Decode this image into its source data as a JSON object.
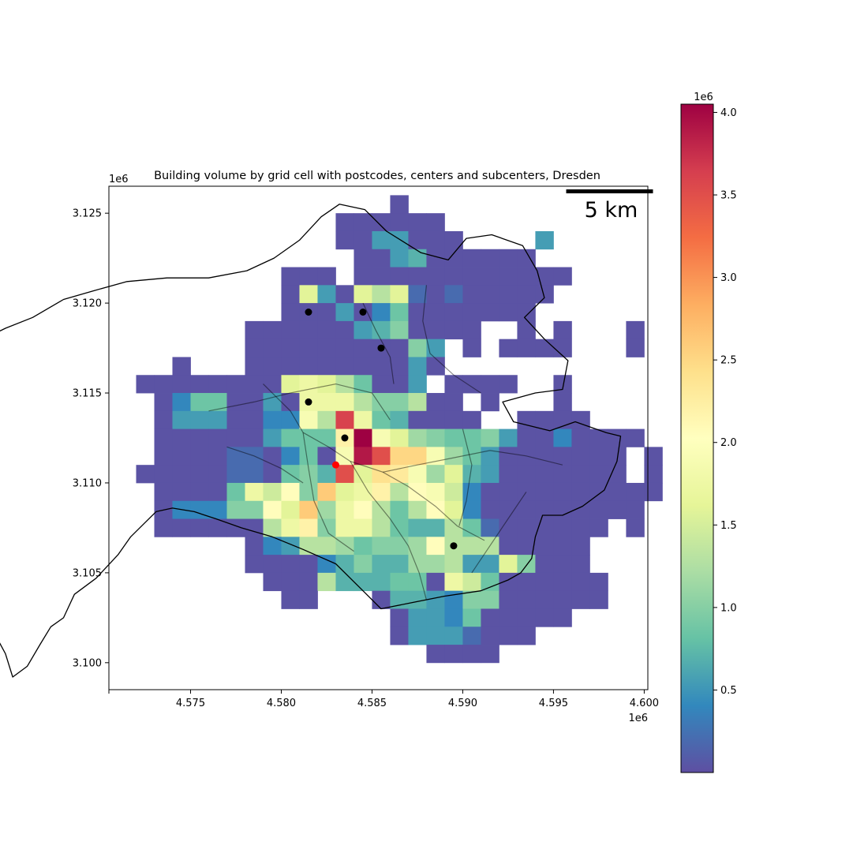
{
  "chart_data": {
    "type": "heatmap",
    "title": "Building volume by grid cell with postcodes, centers and subcenters, Dresden",
    "xlabel": "",
    "ylabel": "",
    "x_offset_label": "1e6",
    "y_offset_label": "1e6",
    "xlim": [
      4.5705,
      4.6002
    ],
    "ylim": [
      3.0985,
      3.1265
    ],
    "x_ticks": [
      4.575,
      4.58,
      4.585,
      4.59,
      4.595,
      4.6
    ],
    "x_tick_labels": [
      "4.575",
      "4.580",
      "4.585",
      "4.590",
      "4.595",
      "4.600"
    ],
    "y_ticks": [
      3.1,
      3.105,
      3.11,
      3.115,
      3.12,
      3.125
    ],
    "y_tick_labels": [
      "3.100",
      "3.105",
      "3.110",
      "3.115",
      "3.120",
      "3.125"
    ],
    "scalebar_label": "5 km",
    "colorbar": {
      "colormap": "Spectral_r",
      "min": 0.0,
      "max": 4.05,
      "offset_label": "1e6",
      "ticks": [
        0.5,
        1.0,
        1.5,
        2.0,
        2.5,
        3.0,
        3.5,
        4.0
      ],
      "tick_labels": [
        "0.5",
        "1.0",
        "1.5",
        "2.0",
        "2.5",
        "3.0",
        "3.5",
        "4.0"
      ]
    },
    "grid": {
      "x0": 4.572,
      "y_top": 3.126,
      "cell": 0.001,
      "rows": [
        "..............1..............",
        "...........111111............",
        "...........1144111....4......",
        "............1145111111.......",
        "........111.111111111111.....",
        "........1B41B9B21211111......",
        "........11141361111111.......",
        "......1111114571111..1.1...1.",
        "......11111111174.1.1111...1.",
        "..1...11111111141............",
        "11111111BCB96114.1111..1.....",
        ".13661141CCC977911.1...1.....",
        ".14441133D9NC651111..1111....",
        ".1111114666FRDB8766741131111.",
        ".1111221361DQLUUD8641111111.1",
        "11111221675LBGVD8B541111111.1",
        ".11116CAE7IBCF9EDA31111111111",
        ".133377EBI8CE969EB3111111111.",
        ".1111119CF7CC9655962111111.1.",
        "......1349986778E99911111....",
        "......11113575588944B7111....",
        ".......1119555661CA6111111...",
        "........11...1554377111111...",
        "..............1443611111.....",
        "..............14442111.......",
        "................1111........."
      ],
      "values_legend": {
        "1": 0.03,
        "2": 0.2,
        "3": 0.4,
        "4": 0.55,
        "5": 0.7,
        "6": 0.85,
        "7": 1.0,
        "8": 1.15,
        "9": 1.3,
        "A": 1.45,
        "B": 1.6,
        "C": 1.75,
        "D": 1.9,
        "E": 2.05,
        "F": 2.2,
        "G": 2.4,
        "H": 2.7,
        "I": 2.6,
        "L": 3.5,
        "N": 3.6,
        "Q": 3.9,
        "R": 4.05,
        "U": 2.5,
        "V": 2.3
      }
    },
    "city_boundary": [
      [
        4.5832,
        3.1255
      ],
      [
        4.5846,
        3.1252
      ],
      [
        4.5858,
        3.124
      ],
      [
        4.5877,
        3.1228
      ],
      [
        4.5892,
        3.1224
      ],
      [
        4.5902,
        3.1236
      ],
      [
        4.5916,
        3.1238
      ],
      [
        4.5933,
        3.1232
      ],
      [
        4.5941,
        3.1218
      ],
      [
        4.5945,
        3.1203
      ],
      [
        4.5934,
        3.1192
      ],
      [
        4.5945,
        3.118
      ],
      [
        4.5958,
        3.1168
      ],
      [
        4.5955,
        3.1152
      ],
      [
        4.594,
        3.115
      ],
      [
        4.5922,
        3.1145
      ],
      [
        4.5928,
        3.1134
      ],
      [
        4.5948,
        3.1129
      ],
      [
        4.5962,
        3.1134
      ],
      [
        4.5979,
        3.1128
      ],
      [
        4.5987,
        3.1126
      ],
      [
        4.5985,
        3.1112
      ],
      [
        4.5978,
        3.1096
      ],
      [
        4.5966,
        3.1087
      ],
      [
        4.5955,
        3.1082
      ],
      [
        4.5944,
        3.1082
      ],
      [
        4.594,
        3.107
      ],
      [
        4.5938,
        3.1058
      ],
      [
        4.5932,
        3.105
      ],
      [
        4.5925,
        3.1046
      ],
      [
        4.591,
        3.104
      ],
      [
        4.589,
        3.1037
      ],
      [
        4.587,
        3.1033
      ],
      [
        4.5855,
        3.103
      ],
      [
        4.5845,
        3.104
      ],
      [
        4.583,
        3.1055
      ],
      [
        4.5812,
        3.1063
      ],
      [
        4.5795,
        3.107
      ],
      [
        4.5778,
        3.1075
      ],
      [
        4.5764,
        3.108
      ],
      [
        4.5752,
        3.1084
      ],
      [
        4.574,
        3.1086
      ],
      [
        4.5731,
        3.1084
      ],
      [
        4.5717,
        3.107
      ],
      [
        4.571,
        3.106
      ],
      [
        4.5698,
        3.1047
      ],
      [
        4.5686,
        3.1038
      ],
      [
        4.568,
        3.1025
      ],
      [
        4.5673,
        3.102
      ],
      [
        4.5667,
        3.101
      ],
      [
        4.566,
        3.0998
      ],
      [
        4.5652,
        3.0992
      ],
      [
        4.5648,
        3.1005
      ],
      [
        4.564,
        3.102
      ],
      [
        4.5631,
        3.1028
      ],
      [
        4.562,
        3.103
      ],
      [
        4.561,
        3.103
      ],
      [
        4.5606,
        3.104
      ],
      [
        4.5597,
        3.105
      ],
      [
        4.559,
        3.106
      ],
      [
        4.5585,
        3.1072
      ],
      [
        4.559,
        3.109
      ],
      [
        4.5585,
        3.111
      ],
      [
        4.559,
        3.1125
      ],
      [
        4.56,
        3.114
      ],
      [
        4.5612,
        3.1155
      ],
      [
        4.5622,
        3.1168
      ],
      [
        4.5632,
        3.1178
      ],
      [
        4.5648,
        3.1186
      ],
      [
        4.5663,
        3.1192
      ],
      [
        4.568,
        3.1202
      ],
      [
        4.5697,
        3.1207
      ],
      [
        4.5715,
        3.1212
      ],
      [
        4.5737,
        3.1214
      ],
      [
        4.576,
        3.1214
      ],
      [
        4.5781,
        3.1218
      ],
      [
        4.5796,
        3.1225
      ],
      [
        4.581,
        3.1235
      ],
      [
        4.5822,
        3.1248
      ],
      [
        4.5832,
        3.1255
      ]
    ],
    "inner_boundaries": [
      [
        [
          4.579,
          3.1155
        ],
        [
          4.5805,
          3.114
        ],
        [
          4.5812,
          3.1128
        ],
        [
          4.5826,
          3.112
        ],
        [
          4.5838,
          3.1112
        ],
        [
          4.5856,
          3.1106
        ],
        [
          4.587,
          3.1098
        ],
        [
          4.5885,
          3.1087
        ],
        [
          4.5897,
          3.1076
        ],
        [
          4.5912,
          3.1068
        ]
      ],
      [
        [
          4.576,
          3.114
        ],
        [
          4.5785,
          3.1145
        ],
        [
          4.5805,
          3.115
        ],
        [
          4.583,
          3.1155
        ],
        [
          4.585,
          3.115
        ],
        [
          4.586,
          3.1135
        ]
      ],
      [
        [
          4.5812,
          3.1128
        ],
        [
          4.5815,
          3.1108
        ],
        [
          4.5818,
          3.109
        ],
        [
          4.5826,
          3.1072
        ],
        [
          4.584,
          3.1062
        ]
      ],
      [
        [
          4.5838,
          3.1112
        ],
        [
          4.5848,
          3.1095
        ],
        [
          4.586,
          3.108
        ],
        [
          4.587,
          3.1065
        ],
        [
          4.5876,
          3.105
        ],
        [
          4.588,
          3.1035
        ]
      ],
      [
        [
          4.5856,
          3.1106
        ],
        [
          4.5875,
          3.111
        ],
        [
          4.5895,
          3.1114
        ],
        [
          4.5915,
          3.1118
        ],
        [
          4.5935,
          3.1115
        ],
        [
          4.5955,
          3.111
        ]
      ],
      [
        [
          4.5845,
          3.12
        ],
        [
          4.5852,
          3.1185
        ],
        [
          4.586,
          3.117
        ],
        [
          4.5862,
          3.1155
        ]
      ],
      [
        [
          4.588,
          3.121
        ],
        [
          4.5878,
          3.119
        ],
        [
          4.5882,
          3.1172
        ],
        [
          4.5895,
          3.116
        ],
        [
          4.591,
          3.115
        ]
      ],
      [
        [
          4.577,
          3.112
        ],
        [
          4.5785,
          3.1115
        ],
        [
          4.58,
          3.1108
        ],
        [
          4.5812,
          3.11
        ]
      ],
      [
        [
          4.59,
          3.113
        ],
        [
          4.5905,
          3.111
        ],
        [
          4.5902,
          3.109
        ],
        [
          4.5898,
          3.1076
        ]
      ],
      [
        [
          4.5905,
          3.105
        ],
        [
          4.5915,
          3.1065
        ],
        [
          4.5925,
          3.108
        ],
        [
          4.5935,
          3.1095
        ]
      ]
    ],
    "subcenters": [
      {
        "x": 4.5815,
        "y": 3.1195
      },
      {
        "x": 4.5845,
        "y": 3.1195
      },
      {
        "x": 4.5855,
        "y": 3.1175
      },
      {
        "x": 4.5815,
        "y": 3.1145
      },
      {
        "x": 4.5835,
        "y": 3.1125
      },
      {
        "x": 4.5895,
        "y": 3.1065
      }
    ],
    "center": {
      "x": 4.583,
      "y": 3.111
    },
    "colors": {
      "center": "#ff0000",
      "subcenter": "#000000",
      "boundary": "#000000",
      "inner_boundary": "#000000"
    }
  }
}
